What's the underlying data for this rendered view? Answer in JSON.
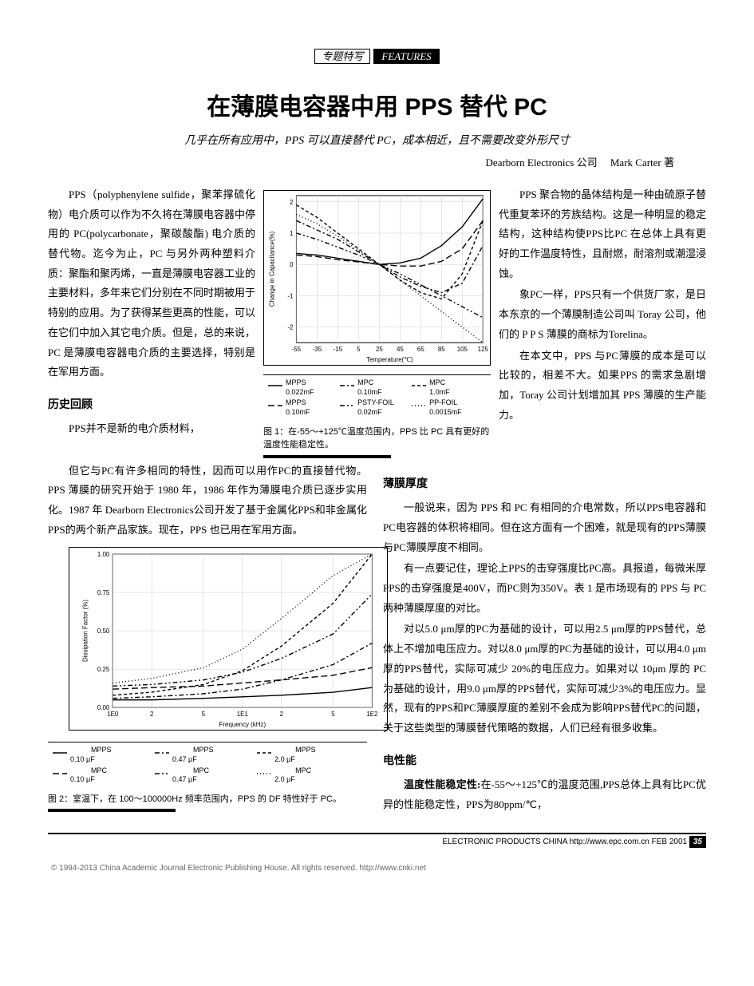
{
  "header": {
    "category": "专题特写",
    "features": "FEATURES"
  },
  "title": "在薄膜电容器中用 PPS 替代 PC",
  "subtitle": "几乎在所有应用中，PPS 可以直接替代 PC，成本相近，且不需要改变外形尺寸",
  "author_company": "Dearborn Electronics 公司",
  "author_name": "Mark Carter 著",
  "col1": {
    "p1": "PPS（polyphenylene sulfide，聚苯撑硫化物）电介质可以作为不久将在薄膜电容器中停用的 PC(polycarbonate，聚碳酸酯) 电介质的替代物。迄今为止，PC 与另外两种塑料介质：聚酯和聚丙烯，一直是薄膜电容器工业的主要材料，多年来它们分别在不同时期被用于特别的应用。为了获得某些更高的性能，可以在它们中加入其它电介质。但是，总的来说，PC 是薄膜电容器电介质的主要选择，特别是在军用方面。",
    "h1": "历史回顾",
    "p2": "PPS并不是新的电介质材料，"
  },
  "col3": {
    "p1": "PPS 聚合物的晶体结构是一种由硫原子替代重复苯环的芳族结构。这是一种明显的稳定结构，这种结构使PPS比PC 在总体上具有更好的工作温度特性，且耐燃，耐溶剂或潮湿浸蚀。",
    "p2": "象PC一样，PPS只有一个供货厂家，是日本东京的一个薄膜制造公司叫 Toray 公司，他们的 P P S 薄膜的商标为Torelina。",
    "p3": "在本文中，PPS 与PC薄膜的成本是可以比较的，相差不大。如果PPS 的需求急剧增加，Toray 公司计划增加其 PPS 薄膜的生产能力。"
  },
  "mid_text": {
    "p1": "但它与PC有许多相同的特性，因而可以用作PC的直接替代物。PPS 薄膜的研究开始于 1980 年，1986 年作为薄膜电介质已逐步实用化。1987 年 Dearborn Electronics公司开发了基于金属化PPS和非金属化PPS的两个新产品家族。现在，PPS 也已用在军用方面。"
  },
  "right2": {
    "h1": "薄膜厚度",
    "p1": "一般说来，因为 PPS 和 PC 有相同的介电常数，所以PPS电容器和PC电容器的体积将相同。但在这方面有一个困难，就是现有的PPS薄膜与PC薄膜厚度不相同。",
    "p2": "有一点要记住，理论上PPS的击穿强度比PC高。具报道，每微米厚PPS的击穿强度是400V，而PC则为350V。表 1 是市场现有的 PPS 与 PC 两种薄膜厚度的对比。",
    "p3": "对以5.0 μm厚的PC为基础的设计，可以用2.5 μm厚的PPS替代，总体上不增加电压应力。对以8.0 μm厚的PC为基础的设计，可以用4.0 μm厚的PPS替代，实际可减少 20%的电压应力。如果对以 10μm 厚的 PC 为基础的设计，用9.0 μm厚的PPS替代，实际可减少3%的电压应力。显然，现有的PPS和PC薄膜厚度的差别不会成为影响PPS替代PC的问题，关于这些类型的薄膜替代策略的数据，人们已经有很多收集。",
    "h2": "电性能",
    "p4a": "温度性能稳定性:",
    "p4b": "在-55～+125℃的温度范围,PPS总体上具有比PC优异的性能稳定性，PPS为80ppm/℃，"
  },
  "fig1": {
    "caption": "图 1：在-55～+125℃温度范围内，PPS 比 PC 具有更好的温度性能稳定性。",
    "xlabel": "Temperature(℃)",
    "ylabel": "Change in Capacitance(%)",
    "xticks": [
      "-55",
      "-35",
      "-15",
      "5",
      "25",
      "45",
      "65",
      "85",
      "105",
      "125"
    ],
    "yticks": [
      "-2",
      "-1",
      "0",
      "1",
      "2"
    ],
    "ylim": [
      -2.5,
      2.2
    ],
    "series": [
      {
        "name": "MPPS 0.022mF",
        "style": "solid",
        "color": "#000",
        "data": [
          [
            -55,
            0.35
          ],
          [
            -35,
            0.3
          ],
          [
            -15,
            0.2
          ],
          [
            5,
            0.1
          ],
          [
            25,
            0
          ],
          [
            45,
            0.05
          ],
          [
            65,
            0.2
          ],
          [
            85,
            0.6
          ],
          [
            105,
            1.2
          ],
          [
            125,
            2.1
          ]
        ]
      },
      {
        "name": "MPPS 0.10mF",
        "style": "longdash",
        "color": "#000",
        "data": [
          [
            -55,
            0.3
          ],
          [
            -35,
            0.25
          ],
          [
            -15,
            0.15
          ],
          [
            5,
            0.08
          ],
          [
            25,
            0
          ],
          [
            45,
            -0.05
          ],
          [
            65,
            -0.05
          ],
          [
            85,
            0.1
          ],
          [
            105,
            0.5
          ],
          [
            125,
            1.4
          ]
        ]
      },
      {
        "name": "MPC 0.10mF",
        "style": "dashdot",
        "color": "#000",
        "data": [
          [
            -55,
            1.4
          ],
          [
            -35,
            1.1
          ],
          [
            -15,
            0.8
          ],
          [
            5,
            0.4
          ],
          [
            25,
            0
          ],
          [
            45,
            -0.4
          ],
          [
            65,
            -0.7
          ],
          [
            85,
            -0.9
          ],
          [
            105,
            -0.6
          ],
          [
            125,
            0.6
          ]
        ]
      },
      {
        "name": "PSTY-FOIL 0.02mF",
        "style": "dashdotdot",
        "color": "#000",
        "data": [
          [
            -55,
            1.0
          ],
          [
            -35,
            0.8
          ],
          [
            -15,
            0.55
          ],
          [
            5,
            0.3
          ],
          [
            25,
            0
          ],
          [
            45,
            -0.3
          ],
          [
            65,
            -0.65
          ],
          [
            85,
            -1.0
          ],
          [
            105,
            -1.35
          ],
          [
            125,
            -1.7
          ]
        ]
      },
      {
        "name": "MPC 1.0mF",
        "style": "shortdash",
        "color": "#000",
        "data": [
          [
            -55,
            1.9
          ],
          [
            -35,
            1.5
          ],
          [
            -15,
            1.0
          ],
          [
            5,
            0.5
          ],
          [
            25,
            0
          ],
          [
            45,
            -0.5
          ],
          [
            65,
            -0.9
          ],
          [
            85,
            -1.1
          ],
          [
            105,
            -0.3
          ],
          [
            125,
            1.4
          ]
        ]
      },
      {
        "name": "PP-FOIL 0.0015mF",
        "style": "dot",
        "color": "#000",
        "data": [
          [
            -55,
            1.6
          ],
          [
            -35,
            1.3
          ],
          [
            -15,
            0.9
          ],
          [
            5,
            0.45
          ],
          [
            25,
            0
          ],
          [
            45,
            -0.5
          ],
          [
            65,
            -1.0
          ],
          [
            85,
            -1.5
          ],
          [
            105,
            -2.0
          ],
          [
            125,
            -2.5
          ]
        ]
      }
    ],
    "legend_rows": [
      [
        {
          "name": "MPPS",
          "val": "0.022mF",
          "style": "solid"
        },
        {
          "name": "MPC",
          "val": "0.10mF",
          "style": "dashdot"
        },
        {
          "name": "MPC",
          "val": "1.0mF",
          "style": "shortdash"
        }
      ],
      [
        {
          "name": "MPPS",
          "val": "0.10mF",
          "style": "longdash"
        },
        {
          "name": "PSTY-FOIL",
          "val": "0.02mF",
          "style": "dashdotdot"
        },
        {
          "name": "PP-FOIL",
          "val": "0.0015mF",
          "style": "dot"
        }
      ]
    ]
  },
  "fig2": {
    "caption": "图 2：室温下，在 100～100000Hz 频率范围内，PPS 的 DF 特性好于 PC。",
    "xlabel": "Frequency (kHz)",
    "ylabel": "Dissipation Factor (%)",
    "xticks_pos": [
      0,
      0.301,
      0.699,
      1,
      1.301,
      1.699,
      2
    ],
    "xticks_lab": [
      "1E0",
      "2",
      "5",
      "1E1",
      "2",
      "5",
      "1E2"
    ],
    "yticks": [
      "0.00",
      "0.25",
      "0.50",
      "0.75",
      "1.00"
    ],
    "series": [
      {
        "name": "MPPS 0.10 μF",
        "style": "solid",
        "data": [
          [
            0,
            0.05
          ],
          [
            0.3,
            0.05
          ],
          [
            0.7,
            0.06
          ],
          [
            1,
            0.07
          ],
          [
            1.3,
            0.08
          ],
          [
            1.7,
            0.1
          ],
          [
            2,
            0.13
          ]
        ]
      },
      {
        "name": "MPPS 0.47 μF",
        "style": "dashdot",
        "data": [
          [
            0,
            0.06
          ],
          [
            0.3,
            0.07
          ],
          [
            0.7,
            0.09
          ],
          [
            1,
            0.12
          ],
          [
            1.3,
            0.18
          ],
          [
            1.7,
            0.28
          ],
          [
            2,
            0.42
          ]
        ]
      },
      {
        "name": "MPPS 2.0 μF",
        "style": "shortdash",
        "data": [
          [
            0,
            0.08
          ],
          [
            0.3,
            0.1
          ],
          [
            0.7,
            0.15
          ],
          [
            1,
            0.24
          ],
          [
            1.3,
            0.4
          ],
          [
            1.7,
            0.68
          ],
          [
            2,
            1.0
          ]
        ]
      },
      {
        "name": "MPC 0.10 μF",
        "style": "longdash",
        "data": [
          [
            0,
            0.12
          ],
          [
            0.3,
            0.13
          ],
          [
            0.7,
            0.14
          ],
          [
            1,
            0.16
          ],
          [
            1.3,
            0.18
          ],
          [
            1.7,
            0.21
          ],
          [
            2,
            0.26
          ]
        ]
      },
      {
        "name": "MPC 0.47 μF",
        "style": "dashdotdot",
        "data": [
          [
            0,
            0.14
          ],
          [
            0.3,
            0.15
          ],
          [
            0.7,
            0.18
          ],
          [
            1,
            0.23
          ],
          [
            1.3,
            0.32
          ],
          [
            1.7,
            0.48
          ],
          [
            2,
            0.74
          ]
        ]
      },
      {
        "name": "MPC 2.0 μF",
        "style": "dot",
        "data": [
          [
            0,
            0.16
          ],
          [
            0.3,
            0.19
          ],
          [
            0.7,
            0.26
          ],
          [
            1,
            0.38
          ],
          [
            1.3,
            0.58
          ],
          [
            1.7,
            0.86
          ],
          [
            2,
            1.0
          ]
        ]
      }
    ],
    "legend_rows": [
      [
        {
          "name": "MPPS",
          "val": "0.10 μF",
          "style": "solid"
        },
        {
          "name": "MPPS",
          "val": "0.47 μF",
          "style": "dashdot"
        },
        {
          "name": "MPPS",
          "val": "2.0 μF",
          "style": "shortdash"
        }
      ],
      [
        {
          "name": "MPC",
          "val": "0.10 μF",
          "style": "longdash"
        },
        {
          "name": "MPC",
          "val": "0.47 μF",
          "style": "dashdotdot"
        },
        {
          "name": "MPC",
          "val": "2.0 μF",
          "style": "dot"
        }
      ]
    ]
  },
  "footer": {
    "line": "ELECTRONIC PRODUCTS CHINA http://www.epc.com.cn FEB 2001",
    "page": "35",
    "copyright": "© 1994-2013 China Academic Journal Electronic Publishing House. All rights reserved.   http://www.cnki.net"
  },
  "dash_patterns": {
    "solid": "",
    "longdash": "8 4",
    "dashdot": "6 3 2 3",
    "dashdotdot": "6 3 2 3 2 3",
    "shortdash": "4 3",
    "dot": "1 3"
  }
}
